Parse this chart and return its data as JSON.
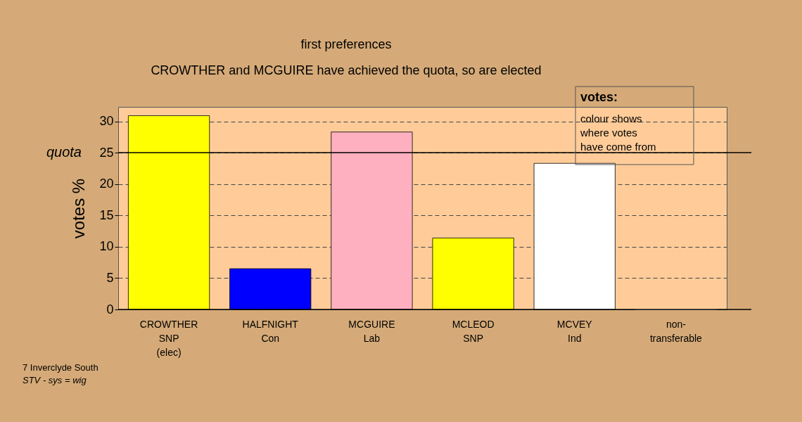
{
  "chart_data": {
    "type": "bar",
    "title": "first preferences",
    "subtitle": "CROWTHER and MCGUIRE have achieved the quota, so are elected",
    "ylabel": "votes %",
    "categories": [
      "CROWTHER\nSNP\n(elec)",
      "HALFNIGHT\nCon",
      "MCGUIRE\nLab",
      "MCLEOD\nSNP",
      "MCVEY\nInd",
      "non-\ntransferable"
    ],
    "values": [
      30.9,
      6.5,
      28.3,
      11.4,
      23.3,
      0
    ],
    "colors": [
      "#ffff00",
      "#0000ff",
      "#ffb0c0",
      "#ffff00",
      "#ffffff",
      "#ffffff"
    ],
    "ylim": [
      0,
      32.3
    ],
    "yticks": [
      0,
      5,
      10,
      15,
      20,
      25,
      30
    ],
    "grid": "y",
    "ref_lines": [
      {
        "axis": "y",
        "value": 25,
        "label": "quota",
        "color": "#000000"
      }
    ],
    "annotations": [
      "votes:",
      "colour shows\nwhere votes\nhave come from",
      "7 Inverclyde South",
      "STV - sys = wig"
    ]
  }
}
